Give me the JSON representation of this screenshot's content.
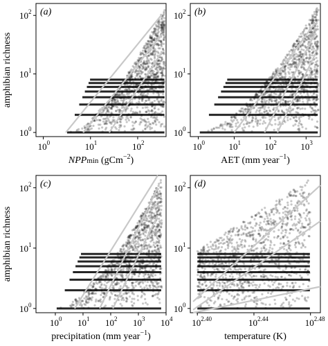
{
  "chart_data": [
    {
      "panel": "(a)",
      "type": "scatter",
      "xlabel": "NPPmin (gCm−2)",
      "xlabel_parts": {
        "italic": "NPP",
        "sub": "min",
        "unit_pre": " (gCm",
        "unit_sup": "−2",
        "unit_post": ")"
      },
      "ylabel": "amphibian richness",
      "xscale": "log",
      "yscale": "log",
      "xlim": [
        0.7,
        400
      ],
      "ylim": [
        0.85,
        160
      ],
      "xticks": [
        1,
        10,
        100
      ],
      "xtick_labels": [
        "10",
        "10",
        "10"
      ],
      "xtick_exps": [
        "0",
        "1",
        "2"
      ],
      "yticks": [
        1,
        10,
        100
      ],
      "ytick_labels": [
        "10",
        "10",
        "10"
      ],
      "ytick_exps": [
        "0",
        "1",
        "2"
      ],
      "cloud": {
        "x_min": 3,
        "x_max": 380,
        "y_max": 140
      },
      "fit_lines": [
        {
          "x": [
            3,
            330
          ],
          "y": [
            1,
            105
          ]
        },
        {
          "x": [
            7,
            330
          ],
          "y": [
            1,
            48
          ]
        },
        {
          "x": [
            25,
            330
          ],
          "y": [
            1,
            24
          ]
        }
      ]
    },
    {
      "panel": "(b)",
      "type": "scatter",
      "xlabel": "AET (mm year−1)",
      "xlabel_parts": {
        "italic": "",
        "sub": "",
        "unit_pre": "AET (mm year",
        "unit_sup": "−1",
        "unit_post": ")"
      },
      "ylabel": "",
      "xscale": "log",
      "yscale": "log",
      "xlim": [
        0.6,
        2500
      ],
      "ylim": [
        0.85,
        160
      ],
      "xticks": [
        1,
        10,
        100,
        1000
      ],
      "xtick_labels": [
        "10",
        "10",
        "10",
        "10"
      ],
      "xtick_exps": [
        "0",
        "1",
        "2",
        "3"
      ],
      "yticks": [
        1,
        10,
        100
      ],
      "ytick_labels": [
        "10",
        "10",
        "10"
      ],
      "ytick_exps": [
        "0",
        "1",
        "2"
      ],
      "cloud": {
        "x_min": 1,
        "x_max": 2200,
        "y_max": 150
      },
      "fit_lines": [
        {
          "x": [
            10,
            1800
          ],
          "y": [
            1,
            75
          ]
        },
        {
          "x": [
            70,
            1800
          ],
          "y": [
            1,
            50
          ]
        },
        {
          "x": [
            160,
            1800
          ],
          "y": [
            1,
            22
          ]
        }
      ]
    },
    {
      "panel": "(c)",
      "type": "scatter",
      "xlabel": "precipitation (mm year−1)",
      "xlabel_parts": {
        "italic": "",
        "sub": "",
        "unit_pre": "precipitation (mm year",
        "unit_sup": "−1",
        "unit_post": ")"
      },
      "ylabel": "amphibian richness",
      "xscale": "log",
      "yscale": "log",
      "xlim": [
        0.2,
        10000
      ],
      "ylim": [
        0.85,
        160
      ],
      "xticks": [
        1,
        10,
        100,
        1000,
        10000
      ],
      "xtick_labels": [
        "10",
        "10",
        "10",
        "10",
        "10"
      ],
      "xtick_exps": [
        "0",
        "1",
        "2",
        "3",
        "4"
      ],
      "yticks": [
        1,
        10,
        100
      ],
      "ytick_labels": [
        "10",
        "10",
        "10"
      ],
      "ytick_exps": [
        "0",
        "1",
        "2"
      ],
      "cloud": {
        "x_min": 1,
        "x_max": 7000,
        "y_max": 150
      },
      "fit_lines": [
        {
          "x": [
            5,
            5000
          ],
          "y": [
            1,
            160
          ]
        },
        {
          "x": [
            40,
            5000
          ],
          "y": [
            1,
            100
          ]
        },
        {
          "x": [
            120,
            5000
          ],
          "y": [
            1,
            35
          ]
        }
      ]
    },
    {
      "panel": "(d)",
      "type": "scatter",
      "xlabel": "temperature (K)",
      "xlabel_parts": {
        "italic": "",
        "sub": "",
        "unit_pre": "temperature (K)",
        "unit_sup": "",
        "unit_post": ""
      },
      "ylabel": "",
      "xscale": "log",
      "yscale": "log",
      "xlim": [
        2.395,
        2.487
      ],
      "xlim_note": "log10 exponents",
      "ylim": [
        0.85,
        160
      ],
      "xticks": [
        2.4,
        2.44,
        2.48
      ],
      "xtick_labels": [
        "10",
        "10",
        "10"
      ],
      "xtick_exps": [
        "2.40",
        "2.44",
        "2.48"
      ],
      "yticks": [
        1,
        10,
        100
      ],
      "ytick_labels": [
        "10",
        "10",
        "10"
      ],
      "ytick_exps": [
        "0",
        "1",
        "2"
      ],
      "cloud": {
        "x_min": 2.4,
        "x_max": 2.48,
        "y_max": 140
      },
      "fit_lines": [
        {
          "x": [
            2.397,
            2.487
          ],
          "y": [
            1.3,
            110
          ]
        },
        {
          "x": [
            2.397,
            2.487
          ],
          "y": [
            0.95,
            28
          ]
        },
        {
          "x": [
            2.397,
            2.487
          ],
          "y": [
            0.85,
            2.3
          ]
        }
      ]
    }
  ]
}
